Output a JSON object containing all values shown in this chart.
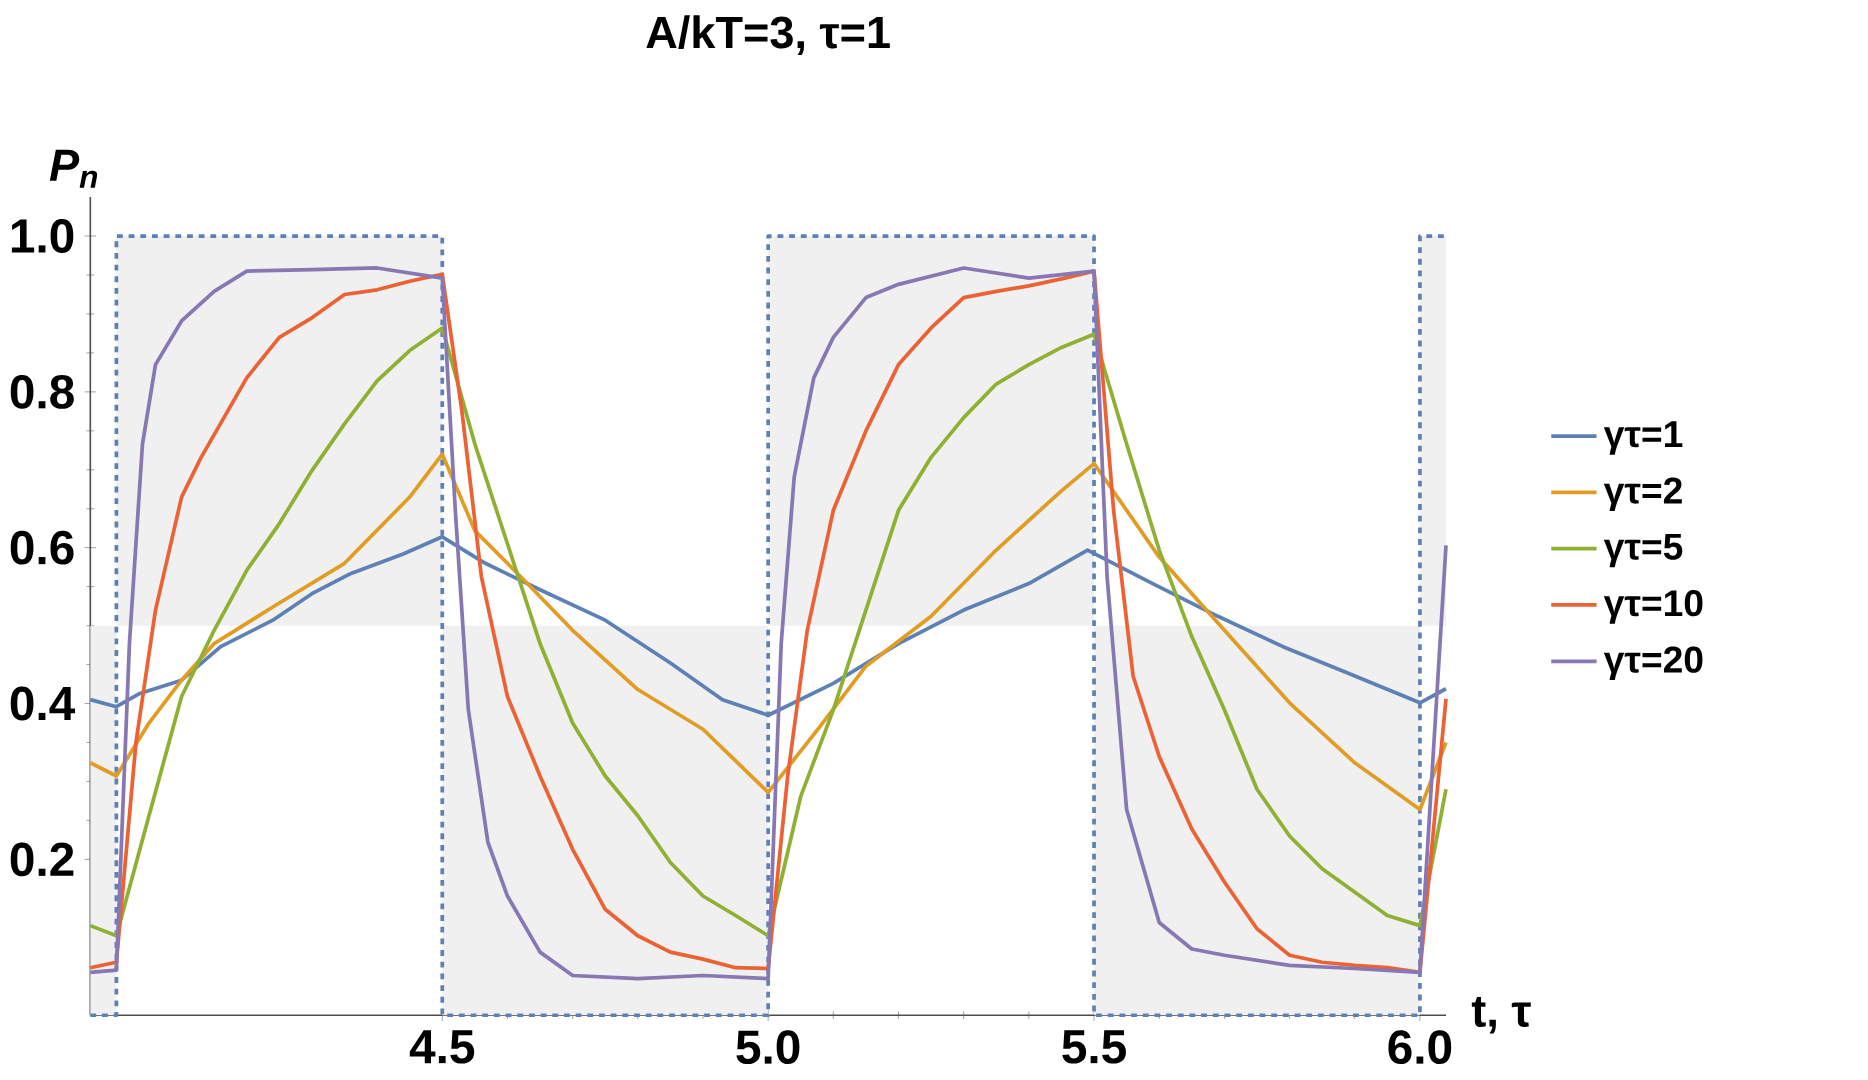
{
  "chart_data": {
    "type": "line",
    "title": "A/kT=3, τ=1",
    "xlabel": "t, τ",
    "ylabel": "P$_{n}$",
    "xlim": [
      3.96,
      6.04
    ],
    "ylim": [
      0,
      1.05
    ],
    "xticks": [
      4.5,
      {
        "value": 5.0,
        "label": "5.0"
      },
      5.5,
      {
        "value": 6.0,
        "label": "6.0"
      }
    ],
    "yticks": [
      0.2,
      0.4,
      0.6,
      0.8,
      {
        "value": 1.0,
        "label": "1.0"
      }
    ],
    "legend": "right",
    "marker": "none",
    "series": [
      {
        "type": "line",
        "line_style": "dotted",
        "color": "#5e81b5",
        "x": [
          3.96,
          4.0,
          4.0,
          4.5,
          4.5,
          5.0,
          5.0,
          5.5,
          5.5,
          6.0,
          6.0,
          6.04
        ],
        "values": [
          0,
          0,
          1,
          1,
          0,
          0,
          1,
          1,
          0,
          0,
          1,
          1
        ]
      },
      {
        "name": "γτ=1",
        "color": "#5e81b5",
        "x": [
          3.96,
          4.0,
          4.036,
          4.1,
          4.16,
          4.24,
          4.3,
          4.36,
          4.44,
          4.5,
          4.566,
          4.65,
          4.75,
          4.85,
          4.93,
          5.0,
          5.1,
          5.2,
          5.3,
          5.4,
          5.49,
          5.59,
          5.69,
          5.79,
          5.89,
          6.0,
          6.04
        ],
        "values": [
          0.405,
          0.396,
          0.413,
          0.43,
          0.473,
          0.507,
          0.541,
          0.567,
          0.592,
          0.614,
          0.58,
          0.546,
          0.507,
          0.452,
          0.405,
          0.385,
          0.426,
          0.477,
          0.52,
          0.554,
          0.597,
          0.554,
          0.512,
          0.473,
          0.439,
          0.401,
          0.419
        ]
      },
      {
        "name": "γτ=2",
        "color": "#e19c24",
        "x": [
          3.96,
          4.0,
          4.05,
          4.1,
          4.15,
          4.25,
          4.35,
          4.45,
          4.5,
          4.55,
          4.62,
          4.7,
          4.8,
          4.9,
          5.0,
          5.08,
          5.15,
          5.25,
          5.35,
          5.45,
          5.5,
          5.6,
          5.7,
          5.8,
          5.9,
          6.0,
          6.04
        ],
        "values": [
          0.324,
          0.307,
          0.375,
          0.43,
          0.477,
          0.529,
          0.58,
          0.665,
          0.72,
          0.622,
          0.563,
          0.494,
          0.418,
          0.367,
          0.286,
          0.371,
          0.448,
          0.512,
          0.597,
          0.673,
          0.708,
          0.588,
          0.494,
          0.401,
          0.324,
          0.264,
          0.35
        ]
      },
      {
        "name": "γτ=5",
        "color": "#8fb032",
        "x": [
          3.96,
          4.0,
          4.05,
          4.1,
          4.15,
          4.2,
          4.25,
          4.3,
          4.35,
          4.4,
          4.45,
          4.5,
          4.55,
          4.6,
          4.65,
          4.7,
          4.75,
          4.8,
          4.85,
          4.9,
          4.95,
          5.0,
          5.05,
          5.1,
          5.15,
          5.2,
          5.25,
          5.3,
          5.35,
          5.4,
          5.45,
          5.5,
          5.55,
          5.6,
          5.65,
          5.7,
          5.75,
          5.8,
          5.85,
          5.9,
          5.95,
          6.0,
          6.04
        ],
        "values": [
          0.115,
          0.102,
          0.256,
          0.409,
          0.494,
          0.571,
          0.631,
          0.699,
          0.759,
          0.814,
          0.853,
          0.882,
          0.733,
          0.605,
          0.477,
          0.375,
          0.307,
          0.256,
          0.196,
          0.153,
          0.128,
          0.102,
          0.281,
          0.392,
          0.52,
          0.648,
          0.716,
          0.767,
          0.81,
          0.835,
          0.857,
          0.874,
          0.733,
          0.597,
          0.486,
          0.392,
          0.29,
          0.23,
          0.188,
          0.158,
          0.128,
          0.115,
          0.29
        ]
      },
      {
        "name": "γτ=10",
        "color": "#eb6235",
        "x": [
          3.96,
          4.0,
          4.03,
          4.06,
          4.1,
          4.13,
          4.2,
          4.25,
          4.3,
          4.35,
          4.4,
          4.45,
          4.5,
          4.53,
          4.56,
          4.6,
          4.65,
          4.7,
          4.75,
          4.8,
          4.85,
          4.9,
          4.95,
          5.0,
          5.03,
          5.06,
          5.1,
          5.15,
          5.2,
          5.25,
          5.3,
          5.35,
          5.4,
          5.45,
          5.5,
          5.53,
          5.56,
          5.6,
          5.65,
          5.7,
          5.75,
          5.8,
          5.85,
          5.9,
          5.95,
          6.0,
          6.04
        ],
        "values": [
          0.061,
          0.068,
          0.35,
          0.52,
          0.665,
          0.716,
          0.818,
          0.87,
          0.895,
          0.925,
          0.931,
          0.942,
          0.951,
          0.776,
          0.563,
          0.409,
          0.307,
          0.213,
          0.136,
          0.102,
          0.081,
          0.072,
          0.061,
          0.06,
          0.307,
          0.494,
          0.648,
          0.75,
          0.835,
          0.882,
          0.921,
          0.929,
          0.936,
          0.945,
          0.955,
          0.648,
          0.435,
          0.332,
          0.239,
          0.171,
          0.111,
          0.077,
          0.068,
          0.064,
          0.061,
          0.055,
          0.406
        ]
      },
      {
        "name": "γτ=20",
        "color": "#8778b3",
        "x": [
          3.96,
          4.0,
          4.02,
          4.04,
          4.06,
          4.1,
          4.15,
          4.2,
          4.3,
          4.4,
          4.5,
          4.52,
          4.54,
          4.57,
          4.6,
          4.65,
          4.7,
          4.8,
          4.9,
          5.0,
          5.02,
          5.04,
          5.07,
          5.1,
          5.15,
          5.2,
          5.3,
          5.4,
          5.5,
          5.52,
          5.55,
          5.6,
          5.65,
          5.7,
          5.8,
          5.9,
          6.0,
          6.04
        ],
        "values": [
          0.055,
          0.058,
          0.477,
          0.733,
          0.835,
          0.891,
          0.929,
          0.955,
          0.957,
          0.959,
          0.946,
          0.648,
          0.392,
          0.222,
          0.153,
          0.081,
          0.051,
          0.047,
          0.051,
          0.047,
          0.477,
          0.691,
          0.818,
          0.87,
          0.921,
          0.938,
          0.959,
          0.946,
          0.955,
          0.563,
          0.264,
          0.119,
          0.085,
          0.077,
          0.064,
          0.06,
          0.055,
          0.603
        ]
      }
    ]
  }
}
